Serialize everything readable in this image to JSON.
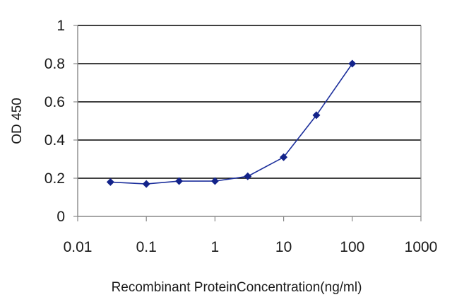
{
  "chart_data": {
    "type": "line",
    "xlabel": "Recombinant ProteinConcentration(ng/ml)",
    "ylabel": "OD 450",
    "xscale": "log",
    "xlim": [
      0.01,
      1000
    ],
    "ylim": [
      0,
      1
    ],
    "x_ticks": [
      "0.01",
      "0.1",
      "1",
      "10",
      "100",
      "1000"
    ],
    "y_ticks": [
      "0",
      "0.2",
      "0.4",
      "0.6",
      "0.8",
      "1"
    ],
    "grid": "horizontal",
    "legend": "none",
    "series": [
      {
        "x": [
          0.03,
          0.1,
          0.3,
          1,
          3,
          10,
          30,
          100
        ],
        "y": [
          0.18,
          0.17,
          0.185,
          0.185,
          0.21,
          0.31,
          0.53,
          0.8
        ]
      }
    ],
    "colors": {
      "line": "#1c2f9c",
      "marker": "#13238a",
      "grid": "#000000",
      "axis": "#888888"
    }
  }
}
